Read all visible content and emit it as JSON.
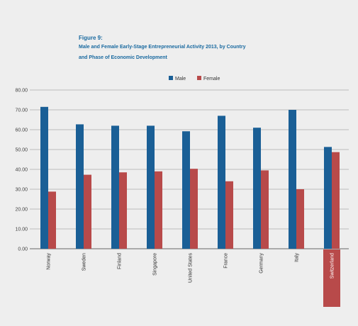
{
  "chart_data": {
    "type": "bar",
    "figure_label": "Figure 9:",
    "title_lines": [
      "Male and Female Early-Stage Entrepreneurial Activity 2013, by Country",
      "and Phase of Economic Development"
    ],
    "categories": [
      "Norway",
      "Sweden",
      "Finland",
      "Singapore",
      "United States",
      "France",
      "Germany",
      "Italy",
      "Switzerland"
    ],
    "highlighted_category": "Switzerland",
    "series": [
      {
        "name": "Male",
        "color": "#1a5f96",
        "values": [
          71.5,
          62.7,
          62.0,
          62.0,
          59.2,
          67.0,
          61.0,
          70.0,
          51.3
        ]
      },
      {
        "name": "Female",
        "color": "#b84a4a",
        "values": [
          28.8,
          37.3,
          38.5,
          39.0,
          40.3,
          34.0,
          39.5,
          30.0,
          48.7
        ]
      }
    ],
    "ylim": [
      0,
      80
    ],
    "yticks": [
      0,
      10,
      20,
      30,
      40,
      50,
      60,
      70,
      80
    ],
    "ytick_labels": [
      "0.00",
      "10.00",
      "20.00",
      "30.00",
      "40.00",
      "50.00",
      "60.00",
      "70.00",
      "80.00"
    ],
    "grid": true,
    "legend_position": "top-center",
    "highlight_color": "#b84a4a"
  }
}
